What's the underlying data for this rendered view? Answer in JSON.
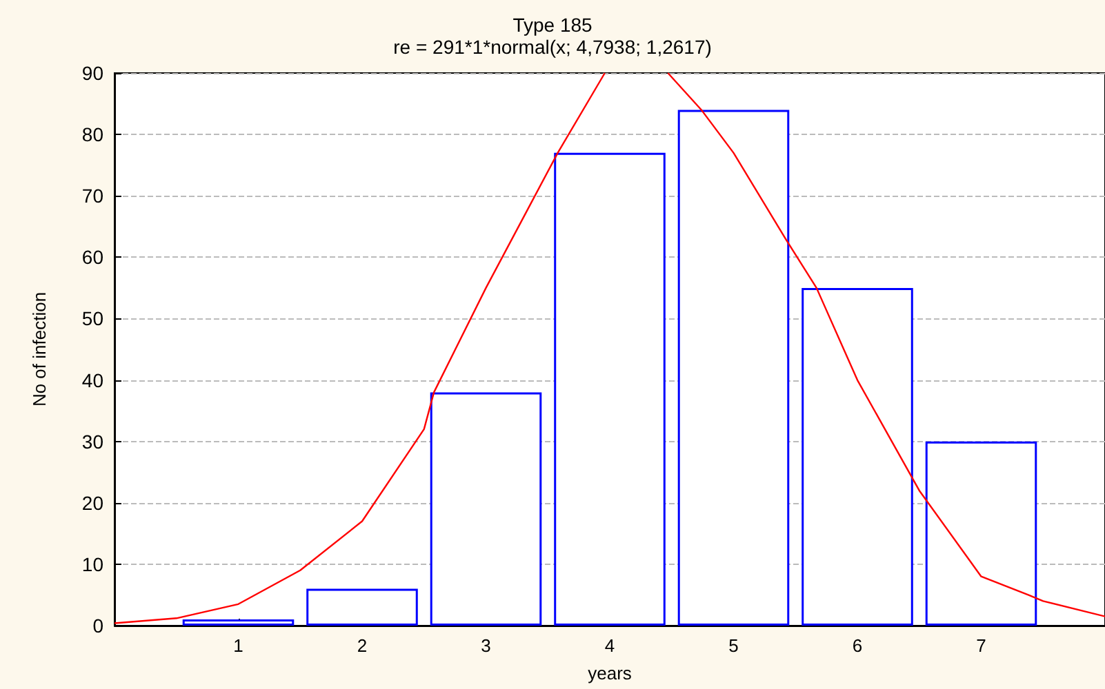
{
  "chart_data": {
    "type": "bar",
    "title": "Type 185",
    "subtitle": "re = 291*1*normal(x; 4,7938; 1,2617)",
    "xlabel": "years",
    "ylabel": "No of infection",
    "x": [
      1,
      2,
      3,
      4,
      5,
      6,
      7
    ],
    "series": [
      {
        "color": "#0000ff",
        "values": [
          1,
          6,
          38,
          77,
          84,
          55,
          30
        ]
      },
      {
        "type": "line",
        "color": "#ff0000",
        "x": [
          0,
          0.5,
          1,
          1.5,
          2,
          2.5,
          2.58,
          3,
          3.58,
          3.96,
          4.2,
          4.47,
          4.74,
          5,
          5.42,
          5.67,
          6,
          6.5,
          7,
          7.38,
          7.5,
          8
        ],
        "values": [
          0.4,
          1.2,
          3.5,
          9,
          17,
          32,
          38,
          55,
          77,
          90,
          null,
          90,
          84,
          77,
          63,
          55,
          40,
          22,
          8,
          5,
          4,
          1.5
        ]
      }
    ],
    "xlim": [
      0,
      8
    ],
    "xticks": [
      1,
      2,
      3,
      4,
      5,
      6,
      7
    ],
    "ylim": [
      0,
      90
    ],
    "yticks": [
      0,
      10,
      20,
      30,
      40,
      50,
      60,
      70,
      80,
      90
    ],
    "grid": "y",
    "marker": "none",
    "line_style": "solid"
  }
}
